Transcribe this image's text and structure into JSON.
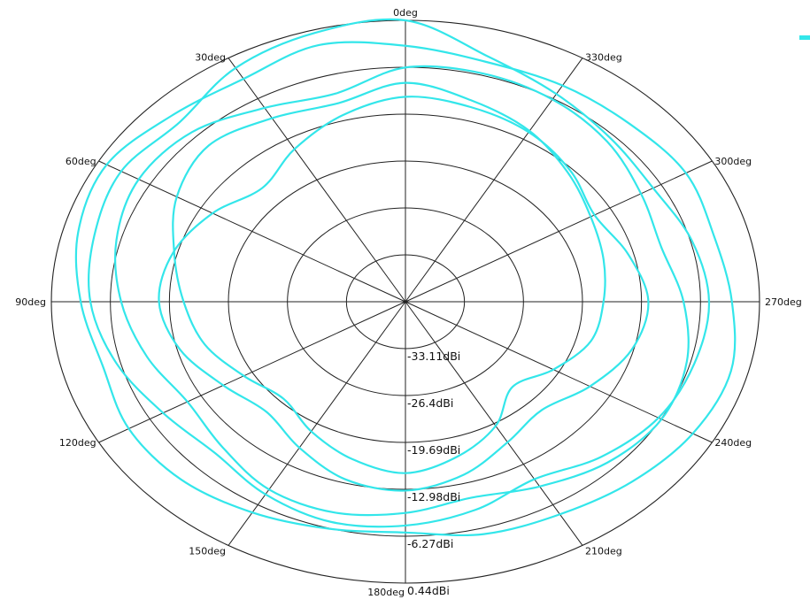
{
  "chart_data": {
    "type": "polar-line",
    "angle_unit": "deg",
    "angle_labels": [
      "0deg",
      "30deg",
      "60deg",
      "90deg",
      "120deg",
      "150deg",
      "180deg",
      "210deg",
      "240deg",
      "270deg",
      "300deg",
      "330deg"
    ],
    "radial_labels": [
      "-33.11dBi",
      "-26.4dBi",
      "-19.69dBi",
      "-12.98dBi",
      "-6.27dBi",
      "0.44dBi"
    ],
    "radial_range": [
      -39.82,
      0.44
    ],
    "grid": true,
    "legend_placement": "top-right",
    "series": [
      {
        "color": "#33e6ea",
        "theta": [
          0,
          15,
          30,
          45,
          60,
          75,
          90,
          105,
          120,
          135,
          150,
          165,
          180,
          195,
          210,
          225,
          240,
          255,
          270,
          285,
          300,
          315,
          330,
          345
        ],
        "r": [
          0.44,
          0.0,
          -1.2,
          -3.5,
          -2.5,
          -3.2,
          -4.0,
          -5.8,
          -8.0,
          -9.2,
          -8.0,
          -7.2,
          -7.8,
          -9.0,
          -10.5,
          -8.4,
          -6.6,
          -5.8,
          -5.3,
          -6.1,
          -7.3,
          -6.8,
          -5.5,
          -3.5
        ]
      },
      {
        "color": "#33e6ea",
        "theta": [
          0,
          15,
          30,
          45,
          60,
          75,
          90,
          105,
          120,
          135,
          150,
          165,
          180,
          195,
          210,
          225,
          240,
          255,
          270,
          285,
          300,
          315,
          330,
          345
        ],
        "r": [
          -6.3,
          -9.0,
          -7.8,
          -5.5,
          -4.8,
          -5.8,
          -7.5,
          -9.4,
          -11.2,
          -10.4,
          -8.8,
          -8.6,
          -9.6,
          -10.8,
          -9.3,
          -7.3,
          -6.2,
          -6.7,
          -8.2,
          -9.7,
          -8.9,
          -7.4,
          -6.4,
          -6.0
        ]
      },
      {
        "color": "#33e6ea",
        "theta": [
          0,
          15,
          30,
          45,
          60,
          75,
          90,
          105,
          120,
          135,
          150,
          165,
          180,
          195,
          210,
          225,
          240,
          255,
          270,
          285,
          300,
          315,
          330,
          345
        ],
        "r": [
          -10.5,
          -12.2,
          -14.6,
          -16.8,
          -14.5,
          -12.5,
          -11.8,
          -13.3,
          -15.9,
          -17.5,
          -15.7,
          -13.5,
          -12.8,
          -14.2,
          -16.6,
          -17.9,
          -15.6,
          -13.2,
          -12.2,
          -13.6,
          -15.0,
          -13.3,
          -11.8,
          -11.0
        ]
      },
      {
        "color": "#33e6ea",
        "theta": [
          0,
          15,
          30,
          45,
          60,
          75,
          90,
          105,
          120,
          135,
          150,
          165,
          180,
          195,
          210,
          225,
          240,
          255,
          270,
          285,
          300,
          315,
          330,
          345
        ],
        "r": [
          -8.5,
          -10.4,
          -9.5,
          -8.2,
          -9.8,
          -12.6,
          -14.6,
          -16.2,
          -18.6,
          -20.2,
          -18.4,
          -16.5,
          -15.3,
          -16.9,
          -19.3,
          -22.6,
          -20.4,
          -18.0,
          -17.3,
          -16.5,
          -15.5,
          -13.7,
          -11.6,
          -10.1
        ]
      },
      {
        "color": "#33e6ea",
        "theta": [
          0,
          15,
          30,
          45,
          60,
          75,
          90,
          105,
          120,
          135,
          150,
          165,
          180,
          195,
          210,
          225,
          240,
          255,
          270,
          285,
          300,
          315,
          330,
          345
        ],
        "r": [
          -3.2,
          -1.8,
          -3.0,
          -2.2,
          -0.6,
          -1.3,
          -2.9,
          -4.2,
          -3.5,
          -3.8,
          -5.0,
          -6.2,
          -6.8,
          -5.4,
          -4.7,
          -3.4,
          -2.1,
          -1.5,
          -2.7,
          -3.5,
          -3.0,
          -3.8,
          -4.1,
          -4.3
        ]
      }
    ]
  }
}
